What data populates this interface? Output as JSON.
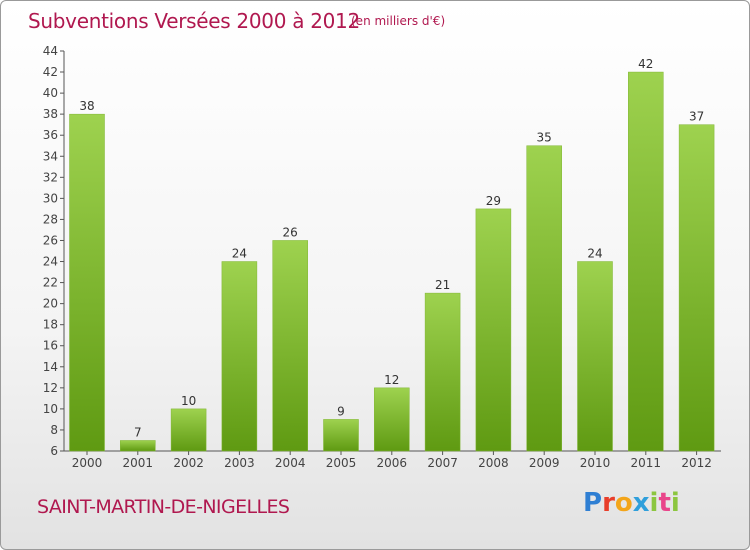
{
  "header": {
    "title": "Subventions Versées 2000 à 2012",
    "unit_note": "(en milliers d'€)"
  },
  "footer": {
    "commune": "SAINT-MARTIN-DE-NIGELLES",
    "logo_text": "Proxiti"
  },
  "colors": {
    "title": "#b0184f",
    "bar_light": "#9ed24f",
    "bar_dark": "#5f9a12"
  },
  "chart_data": {
    "type": "bar",
    "categories": [
      "2000",
      "2001",
      "2002",
      "2003",
      "2004",
      "2005",
      "2006",
      "2007",
      "2008",
      "2009",
      "2010",
      "2011",
      "2012"
    ],
    "values": [
      38,
      7,
      10,
      24,
      26,
      9,
      12,
      21,
      29,
      35,
      24,
      42,
      37
    ],
    "title": "Subventions Versées 2000 à 2012",
    "subtitle": "(en milliers d'€)",
    "xlabel": "",
    "ylabel": "",
    "ylim": [
      6,
      44
    ],
    "yticks": [
      6,
      8,
      10,
      12,
      14,
      16,
      18,
      20,
      22,
      24,
      26,
      28,
      30,
      32,
      34,
      36,
      38,
      40,
      42,
      44
    ],
    "grid": false,
    "legend": "none"
  }
}
